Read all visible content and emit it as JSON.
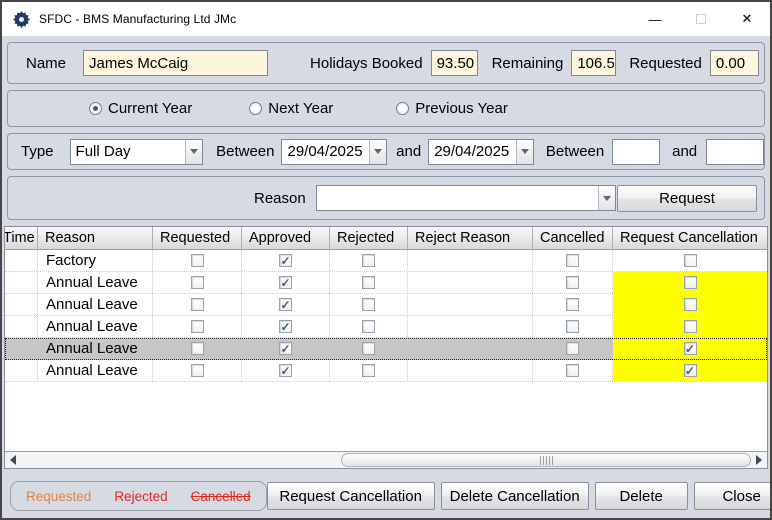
{
  "window": {
    "title": "SFDC - BMS Manufacturing Ltd JMc",
    "minimize_glyph": "—",
    "close_glyph": "✕",
    "icons": {
      "app": "gear-icon",
      "maximize": "square-outline (css)"
    }
  },
  "header_fields": {
    "name_label": "Name",
    "name_value": "James McCaig",
    "holidays_booked_label": "Holidays Booked",
    "holidays_booked_value": "93.50",
    "remaining_label": "Remaining",
    "remaining_value": "106.50",
    "requested_label": "Requested",
    "requested_value": "0.00"
  },
  "year_options": [
    {
      "label": "Current Year",
      "selected": true
    },
    {
      "label": "Next Year",
      "selected": false
    },
    {
      "label": "Previous Year",
      "selected": false
    }
  ],
  "filters": {
    "type_label": "Type",
    "type_value": "Full Day",
    "between_label": "Between",
    "date_from": "29/04/2025",
    "and_label": "and",
    "date_to": "29/04/2025",
    "between2_label": "Between",
    "time_from": "",
    "and2_label": "and",
    "time_to": ""
  },
  "reason_row": {
    "label": "Reason",
    "value": "",
    "request_button": "Request"
  },
  "table": {
    "columns": [
      "Time",
      "Reason",
      "Requested",
      "Approved",
      "Rejected",
      "Reject Reason",
      "Cancelled",
      "Request Cancellation"
    ],
    "rows": [
      {
        "time": "",
        "reason": "Factory",
        "requested": false,
        "approved": true,
        "rejected": false,
        "reject_reason": "",
        "cancelled": false,
        "request_cancellation": false,
        "rc_highlight": false,
        "selected": false
      },
      {
        "time": "",
        "reason": "Annual Leave",
        "requested": false,
        "approved": true,
        "rejected": false,
        "reject_reason": "",
        "cancelled": false,
        "request_cancellation": false,
        "rc_highlight": true,
        "selected": false
      },
      {
        "time": "",
        "reason": "Annual Leave",
        "requested": false,
        "approved": true,
        "rejected": false,
        "reject_reason": "",
        "cancelled": false,
        "request_cancellation": false,
        "rc_highlight": true,
        "selected": false
      },
      {
        "time": "",
        "reason": "Annual Leave",
        "requested": false,
        "approved": true,
        "rejected": false,
        "reject_reason": "",
        "cancelled": false,
        "request_cancellation": false,
        "rc_highlight": true,
        "selected": false
      },
      {
        "time": "",
        "reason": "Annual Leave",
        "requested": false,
        "approved": true,
        "rejected": false,
        "reject_reason": "",
        "cancelled": false,
        "request_cancellation": true,
        "rc_highlight": true,
        "selected": true
      },
      {
        "time": "",
        "reason": "Annual Leave",
        "requested": false,
        "approved": true,
        "rejected": false,
        "reject_reason": "",
        "cancelled": false,
        "request_cancellation": true,
        "rc_highlight": true,
        "selected": false
      }
    ]
  },
  "legend": {
    "requested": "Requested",
    "rejected": "Rejected",
    "cancelled": "Cancelled"
  },
  "footer_buttons": {
    "request_cancellation": "Request Cancellation",
    "delete_cancellation": "Delete Cancellation",
    "delete": "Delete",
    "close": "Close"
  },
  "colors": {
    "row_highlight": "#ffff00",
    "selected_row": "#c6c6c6",
    "legend_orange": "#e8823c",
    "legend_red": "#e2261c",
    "readonly_input_bg": "#fdf6dd"
  }
}
